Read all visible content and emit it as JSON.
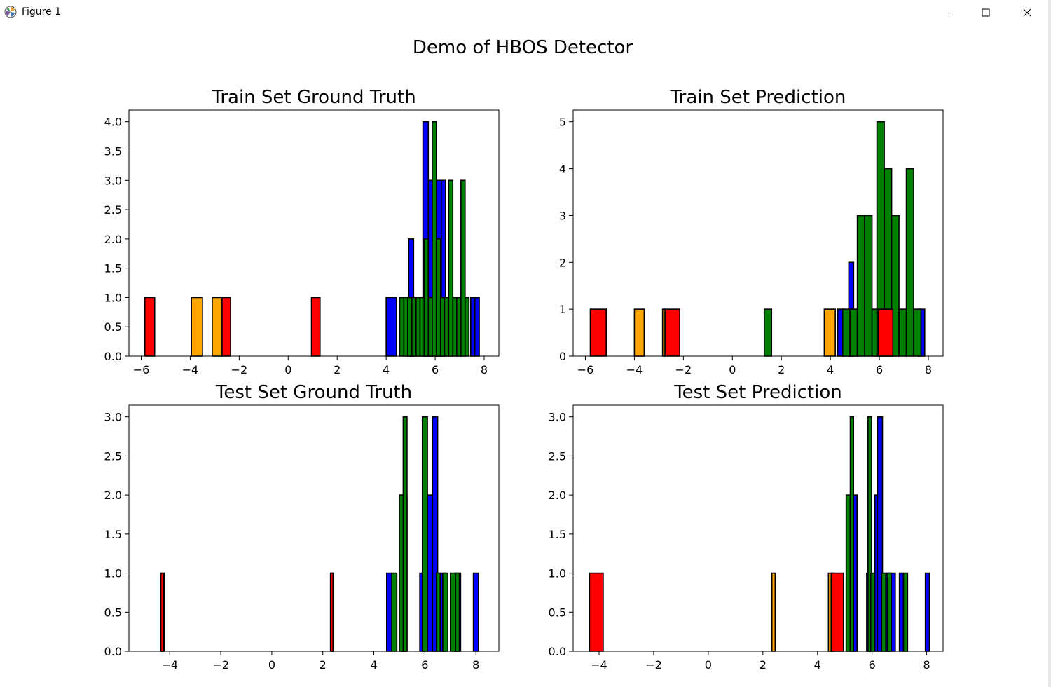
{
  "window": {
    "title": "Figure 1",
    "icons": {
      "app": "matplotlib-logo-icon",
      "minimize": "minimize-icon",
      "maximize": "maximize-icon",
      "close": "close-icon"
    }
  },
  "figure": {
    "suptitle": "Demo of HBOS Detector"
  },
  "colors": {
    "red": "#ff0000",
    "orange": "#ffa500",
    "blue": "#0000ff",
    "green": "#008000",
    "edge": "#000000"
  },
  "chart_data": [
    {
      "type": "bar",
      "title": "Train Set Ground Truth",
      "xlim": [
        -6.5,
        8.6
      ],
      "ylim": [
        0,
        4.2
      ],
      "xticks": [
        -6,
        -4,
        -2,
        0,
        2,
        4,
        6,
        8
      ],
      "xtick_labels": [
        "−6",
        "−4",
        "−2",
        "0",
        "2",
        "4",
        "6",
        "8"
      ],
      "yticks": [
        0,
        0.5,
        1,
        1.5,
        2,
        2.5,
        3,
        3.5,
        4
      ],
      "ytick_labels": [
        "0.0",
        "0.5",
        "1.0",
        "1.5",
        "2.0",
        "2.5",
        "3.0",
        "3.5",
        "4.0"
      ],
      "baseline": [
        -6.0,
        7.85
      ],
      "series": [
        {
          "name": "red",
          "color": "red",
          "bars": [
            [
              -5.85,
              -5.45,
              1
            ],
            [
              -2.7,
              -2.35,
              1
            ],
            [
              0.95,
              1.3,
              1
            ]
          ]
        },
        {
          "name": "orange",
          "color": "orange",
          "bars": [
            [
              -3.95,
              -3.5,
              1
            ],
            [
              -3.1,
              -2.7,
              1
            ]
          ]
        },
        {
          "name": "blue",
          "color": "blue",
          "bars": [
            [
              4.0,
              4.42,
              1
            ],
            [
              4.92,
              5.12,
              2
            ],
            [
              5.5,
              5.72,
              4
            ],
            [
              5.72,
              5.9,
              3
            ],
            [
              6.05,
              6.25,
              3
            ],
            [
              6.25,
              6.42,
              3
            ],
            [
              7.45,
              7.62,
              1
            ],
            [
              7.62,
              7.8,
              1
            ]
          ]
        },
        {
          "name": "green",
          "color": "green",
          "bars": [
            [
              4.55,
              4.72,
              1
            ],
            [
              4.72,
              4.88,
              1
            ],
            [
              4.88,
              5.05,
              1
            ],
            [
              5.05,
              5.22,
              1
            ],
            [
              5.22,
              5.38,
              1
            ],
            [
              5.38,
              5.55,
              1
            ],
            [
              5.55,
              5.72,
              2
            ],
            [
              5.72,
              5.88,
              1
            ],
            [
              5.88,
              6.05,
              4
            ],
            [
              6.05,
              6.22,
              2
            ],
            [
              6.22,
              6.38,
              1
            ],
            [
              6.38,
              6.55,
              1
            ],
            [
              6.55,
              6.72,
              3
            ],
            [
              6.72,
              6.88,
              1
            ],
            [
              6.88,
              7.05,
              1
            ],
            [
              7.05,
              7.22,
              3
            ],
            [
              7.22,
              7.38,
              1
            ]
          ]
        }
      ]
    },
    {
      "type": "bar",
      "title": "Train Set Prediction",
      "xlim": [
        -6.5,
        8.6
      ],
      "ylim": [
        0,
        5.25
      ],
      "xticks": [
        -6,
        -4,
        -2,
        0,
        2,
        4,
        6,
        8
      ],
      "xtick_labels": [
        "−6",
        "−4",
        "−2",
        "0",
        "2",
        "4",
        "6",
        "8"
      ],
      "yticks": [
        0,
        1,
        2,
        3,
        4,
        5
      ],
      "ytick_labels": [
        "0",
        "1",
        "2",
        "3",
        "4",
        "5"
      ],
      "baseline": [
        -6.0,
        7.85
      ],
      "series": [
        {
          "name": "red",
          "color": "red",
          "bars": [
            [
              -5.8,
              -5.15,
              1
            ],
            [
              -2.75,
              -2.15,
              1
            ],
            [
              5.95,
              6.55,
              1
            ]
          ]
        },
        {
          "name": "orange",
          "color": "orange",
          "bars": [
            [
              -4.0,
              -3.6,
              1
            ],
            [
              -2.85,
              -2.75,
              1
            ],
            [
              3.75,
              4.2,
              1
            ]
          ]
        },
        {
          "name": "blue",
          "color": "blue",
          "bars": [
            [
              4.3,
              4.55,
              1
            ],
            [
              4.75,
              4.95,
              2
            ],
            [
              7.6,
              7.85,
              1
            ]
          ]
        },
        {
          "name": "green",
          "color": "green",
          "bars": [
            [
              1.3,
              1.6,
              1
            ],
            [
              4.5,
              4.8,
              1
            ],
            [
              4.8,
              5.1,
              1
            ],
            [
              5.1,
              5.4,
              3
            ],
            [
              5.4,
              5.7,
              3
            ],
            [
              5.7,
              6.0,
              1
            ],
            [
              5.9,
              6.2,
              5
            ],
            [
              6.2,
              6.5,
              4
            ],
            [
              6.5,
              6.8,
              3
            ],
            [
              6.8,
              7.1,
              1
            ],
            [
              7.1,
              7.4,
              4
            ],
            [
              7.4,
              7.7,
              1
            ]
          ]
        }
      ]
    },
    {
      "type": "bar",
      "title": "Test Set Ground Truth",
      "xlim": [
        -5.6,
        8.9
      ],
      "ylim": [
        0,
        3.15
      ],
      "xticks": [
        -4,
        -2,
        0,
        2,
        4,
        6,
        8
      ],
      "xtick_labels": [
        "−4",
        "−2",
        "0",
        "2",
        "4",
        "6",
        "8"
      ],
      "yticks": [
        0,
        0.5,
        1,
        1.5,
        2,
        2.5,
        3
      ],
      "ytick_labels": [
        "0.0",
        "0.5",
        "1.0",
        "1.5",
        "2.0",
        "2.5",
        "3.0"
      ],
      "baseline": [
        -4.95,
        2.85
      ],
      "series": [
        {
          "name": "red",
          "color": "red",
          "bars": [
            [
              -4.35,
              -4.25,
              1
            ],
            [
              2.3,
              2.4,
              1
            ]
          ]
        },
        {
          "name": "orange",
          "color": "orange",
          "bars": [
            [
              -4.32,
              -4.22,
              1
            ],
            [
              2.33,
              2.42,
              1
            ]
          ]
        },
        {
          "name": "blue",
          "color": "blue",
          "bars": [
            [
              4.5,
              4.7,
              1
            ],
            [
              5.1,
              5.3,
              2
            ],
            [
              5.8,
              6.0,
              1
            ],
            [
              6.1,
              6.3,
              2
            ],
            [
              6.3,
              6.5,
              3
            ],
            [
              6.6,
              6.8,
              1
            ],
            [
              7.2,
              7.4,
              1
            ],
            [
              7.9,
              8.1,
              1
            ]
          ]
        },
        {
          "name": "green",
          "color": "green",
          "bars": [
            [
              4.7,
              4.9,
              1
            ],
            [
              5.0,
              5.15,
              2
            ],
            [
              5.15,
              5.3,
              3
            ],
            [
              5.9,
              6.1,
              3
            ],
            [
              6.45,
              6.6,
              1
            ],
            [
              6.7,
              6.9,
              1
            ],
            [
              7.0,
              7.2,
              1
            ],
            [
              7.2,
              7.35,
              1
            ]
          ]
        }
      ]
    },
    {
      "type": "bar",
      "title": "Test Set Prediction",
      "xlim": [
        -4.95,
        8.6
      ],
      "ylim": [
        0,
        3.15
      ],
      "xticks": [
        -4,
        -2,
        0,
        2,
        4,
        6,
        8
      ],
      "xtick_labels": [
        "−4",
        "−2",
        "0",
        "2",
        "4",
        "6",
        "8"
      ],
      "yticks": [
        0,
        0.5,
        1,
        1.5,
        2,
        2.5,
        3
      ],
      "ytick_labels": [
        "0.0",
        "0.5",
        "1.0",
        "1.5",
        "2.0",
        "2.5",
        "3.0"
      ],
      "baseline": [
        -4.35,
        8.1
      ],
      "series": [
        {
          "name": "red",
          "color": "red",
          "bars": [
            [
              -4.35,
              -3.85,
              1
            ],
            [
              4.5,
              4.95,
              1
            ]
          ]
        },
        {
          "name": "orange",
          "color": "orange",
          "bars": [
            [
              2.33,
              2.45,
              1
            ],
            [
              4.4,
              4.6,
              1
            ]
          ]
        },
        {
          "name": "blue",
          "color": "blue",
          "bars": [
            [
              5.3,
              5.45,
              2
            ],
            [
              5.8,
              5.95,
              1
            ],
            [
              6.1,
              6.2,
              2
            ],
            [
              6.2,
              6.38,
              3
            ],
            [
              6.5,
              6.65,
              1
            ],
            [
              6.7,
              6.85,
              1
            ],
            [
              7.0,
              7.15,
              1
            ],
            [
              7.95,
              8.1,
              1
            ]
          ]
        },
        {
          "name": "green",
          "color": "green",
          "bars": [
            [
              5.05,
              5.2,
              2
            ],
            [
              5.2,
              5.32,
              3
            ],
            [
              5.85,
              5.98,
              3
            ],
            [
              5.95,
              6.08,
              1
            ],
            [
              6.35,
              6.5,
              1
            ],
            [
              6.55,
              6.7,
              1
            ],
            [
              7.15,
              7.3,
              1
            ]
          ]
        }
      ]
    }
  ]
}
